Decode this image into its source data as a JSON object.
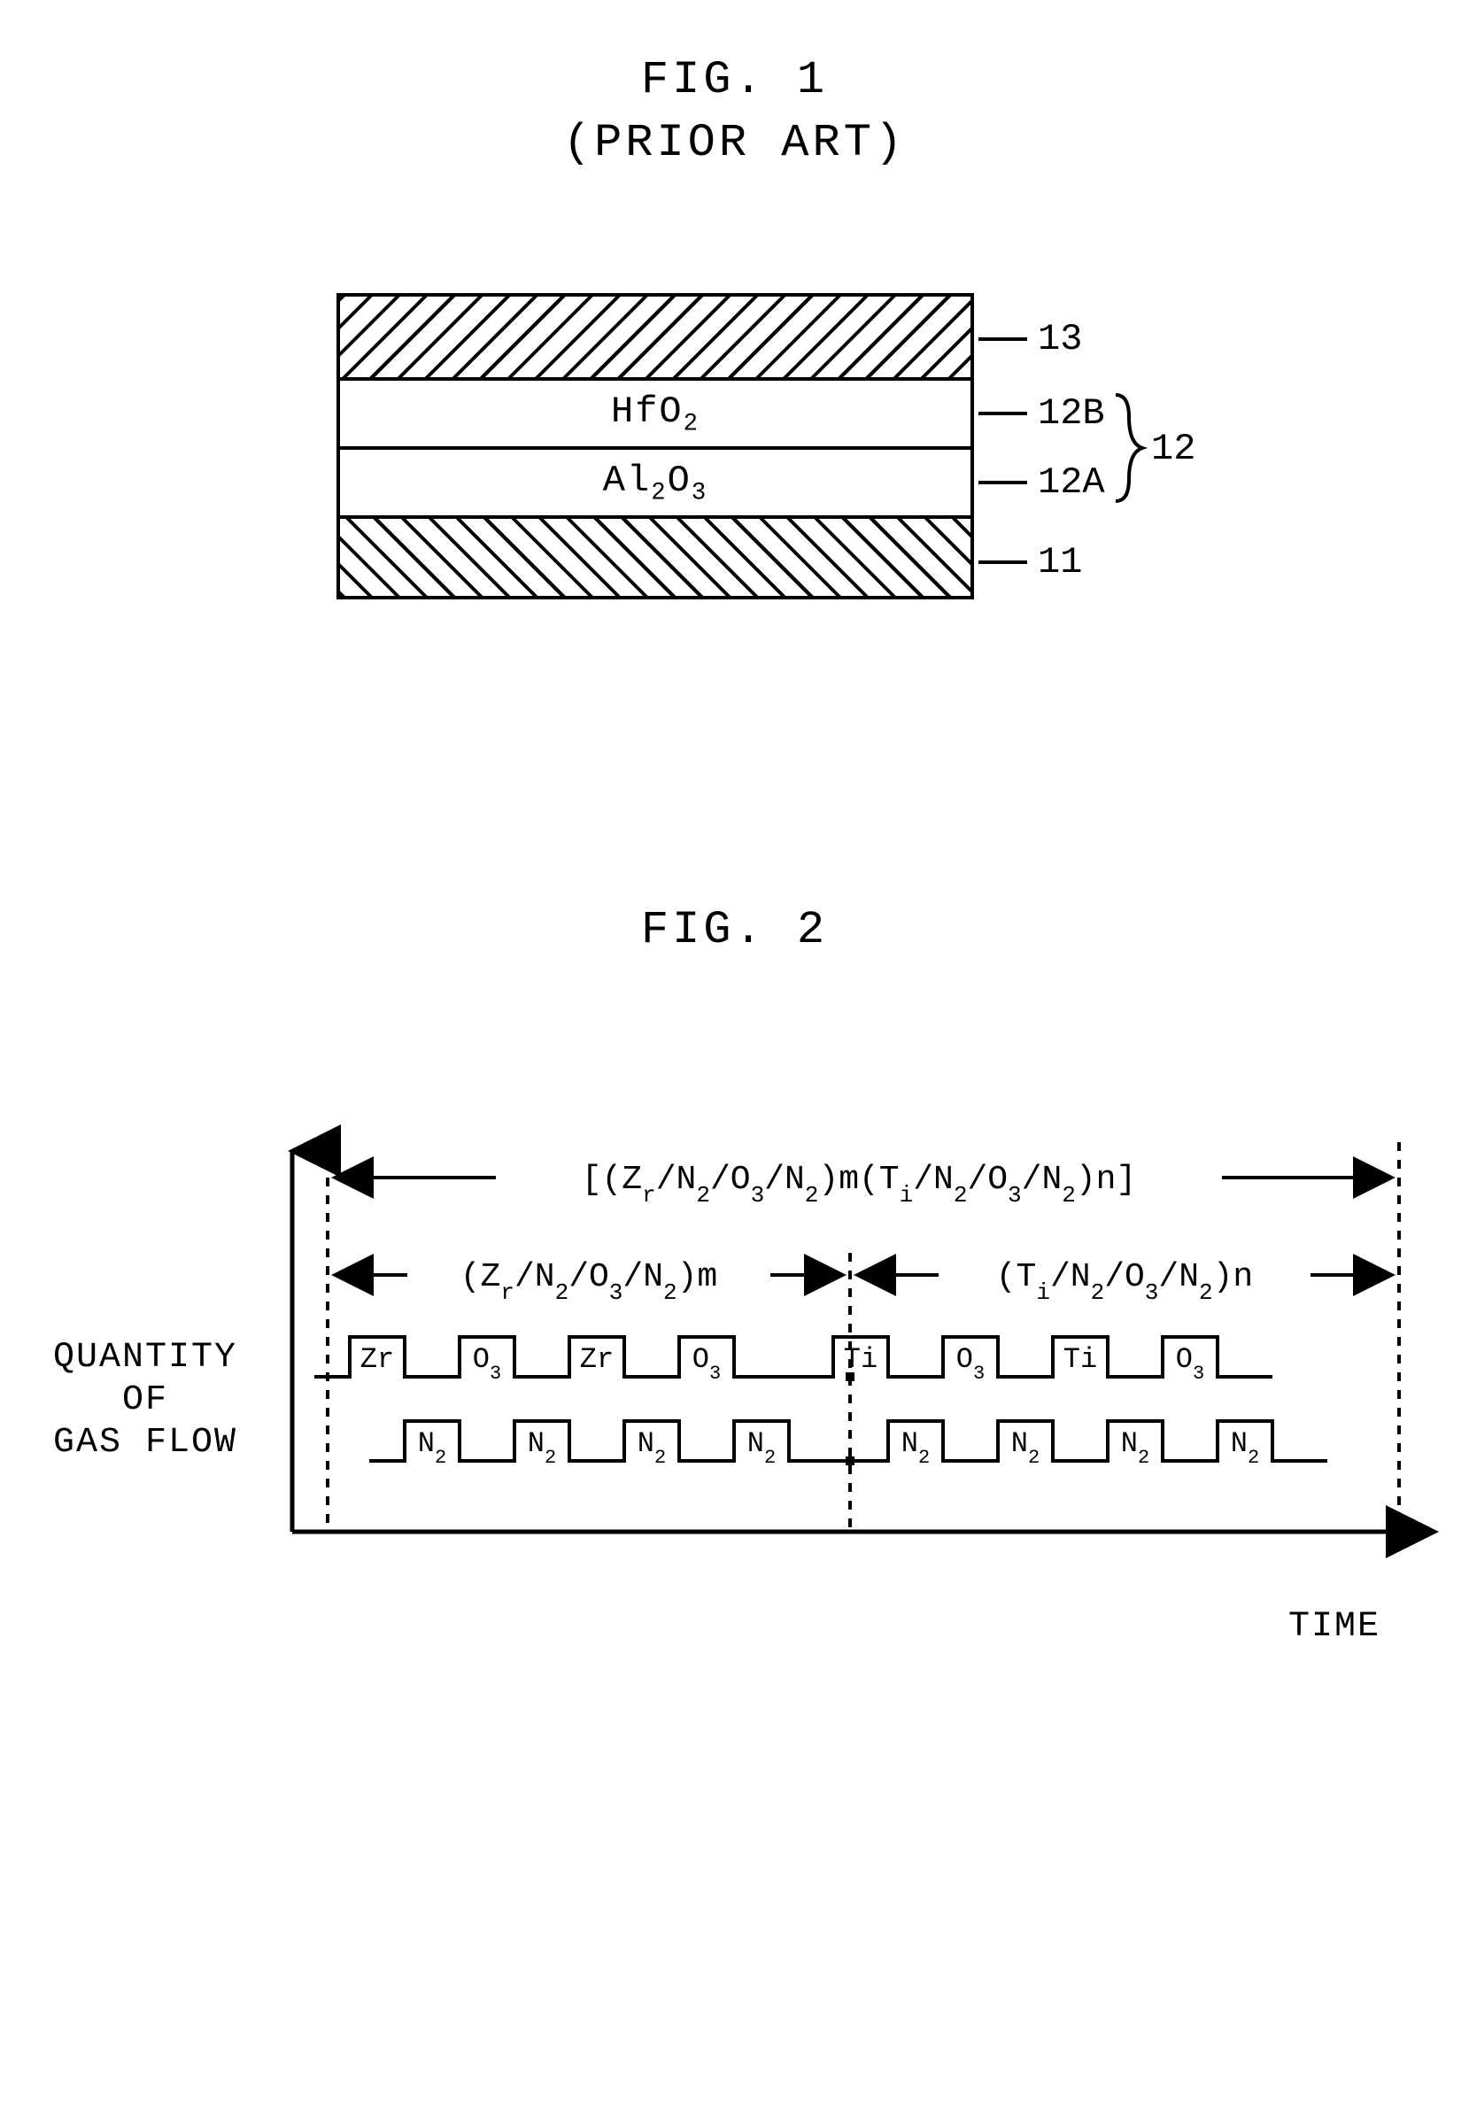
{
  "fig1": {
    "title": "FIG. 1",
    "subtitle": "(PRIOR ART)",
    "layers": [
      {
        "id": "13",
        "label": "",
        "pattern": "hatch-down",
        "height": 95
      },
      {
        "id": "12B",
        "label": "HfO₂",
        "pattern": "plain",
        "height": 78
      },
      {
        "id": "12A",
        "label": "Al₂O₃",
        "pattern": "plain",
        "height": 78
      },
      {
        "id": "11",
        "label": "",
        "pattern": "hatch-up",
        "height": 95
      }
    ],
    "brace_group_label": "12",
    "stroke": "#000000",
    "bg": "#ffffff",
    "font_size_label": 42,
    "font_size_callout": 42
  },
  "fig2": {
    "title": "FIG. 2",
    "y_label_line1": "QUANTITY",
    "y_label_line2": "OF",
    "y_label_line3": "GAS FLOW",
    "x_label": "TIME",
    "top_expr": "[(Zr/N₂/O₃/N₂)m(Ti/N₂/O₃/N₂)n]",
    "left_expr": "(Zr/N₂/O₃/N₂)m",
    "right_expr": "(Ti/N₂/O₃/N₂)n",
    "row1_pulses_left": [
      "Zr",
      "O₃",
      "Zr",
      "O₃"
    ],
    "row1_pulses_right": [
      "Ti",
      "O₃",
      "Ti",
      "O₃"
    ],
    "row2_pulses_left": [
      "N₂",
      "N₂",
      "N₂",
      "N₂"
    ],
    "row2_pulses_right": [
      "N₂",
      "N₂",
      "N₂",
      "N₂"
    ],
    "stroke": "#000000",
    "stroke_width": 4,
    "pulse_height": 45,
    "pulse_width": 62,
    "pulse_gap": 62,
    "axis_font_size": 40,
    "expr_font_size": 38,
    "pulse_font_size": 32
  }
}
